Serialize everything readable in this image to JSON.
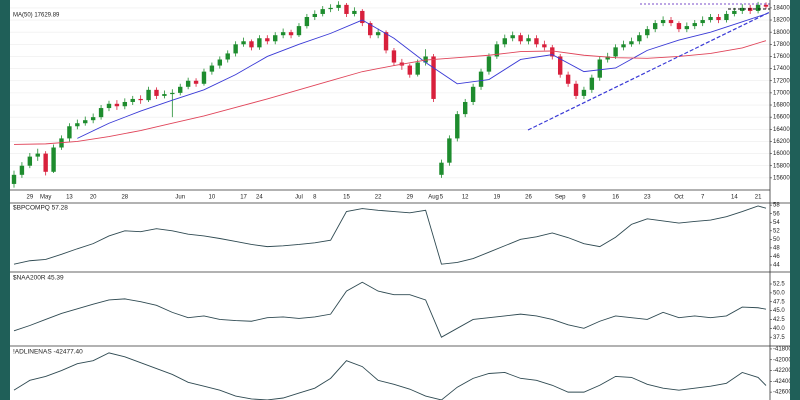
{
  "chart_data": [
    {
      "type": "candlestick",
      "categories": [
        null,
        null,
        "29",
        null,
        "May",
        null,
        null,
        "13",
        null,
        null,
        "20",
        null,
        null,
        null,
        "28",
        null,
        null,
        null,
        null,
        null,
        null,
        "Jun",
        null,
        null,
        null,
        "10",
        null,
        null,
        null,
        "17",
        null,
        "24",
        null,
        null,
        null,
        null,
        "Jul",
        null,
        "8",
        null,
        null,
        null,
        "15",
        null,
        null,
        null,
        "22",
        null,
        null,
        null,
        "29",
        null,
        null,
        "Aug",
        "5",
        null,
        null,
        "12",
        null,
        null,
        null,
        "19",
        null,
        null,
        null,
        "26",
        null,
        null,
        null,
        "Sep",
        null,
        null,
        "9",
        null,
        null,
        null,
        "16",
        null,
        null,
        null,
        "23",
        null,
        null,
        null,
        "Oct",
        null,
        null,
        "7",
        null,
        null,
        null,
        "14",
        null,
        null,
        "21",
        null
      ],
      "open": [
        15500,
        15650,
        15800,
        15950,
        16000,
        15700,
        16100,
        16250,
        16450,
        16500,
        16550,
        16600,
        16750,
        16820,
        16780,
        16850,
        16900,
        16880,
        17050,
        16950,
        16980,
        17000,
        17100,
        17200,
        17150,
        17350,
        17450,
        17550,
        17650,
        17800,
        17850,
        17750,
        17900,
        17850,
        17950,
        18000,
        17950,
        18100,
        18250,
        18300,
        18380,
        18400,
        18450,
        18300,
        18350,
        18150,
        17950,
        18000,
        17700,
        17500,
        17450,
        17300,
        17500,
        17600,
        15650,
        15850,
        16250,
        16650,
        16850,
        17100,
        17350,
        17600,
        17800,
        17900,
        17950,
        17850,
        17900,
        17800,
        17750,
        17600,
        17300,
        17150,
        16950,
        17050,
        17250,
        17550,
        17600,
        17750,
        17800,
        17850,
        17950,
        18050,
        18150,
        18200,
        18150,
        18050,
        18100,
        18150,
        18200,
        18250,
        18200,
        18300,
        18350,
        18400,
        18350,
        18450
      ],
      "high": [
        15720,
        15860,
        16010,
        16080,
        16040,
        16150,
        16300,
        16500,
        16560,
        16610,
        16660,
        16800,
        16870,
        16880,
        16910,
        16950,
        16960,
        17100,
        17090,
        17040,
        17060,
        17150,
        17250,
        17240,
        17400,
        17500,
        17600,
        17700,
        17850,
        17910,
        17880,
        17950,
        17950,
        18000,
        18060,
        18040,
        18150,
        18300,
        18360,
        18430,
        18460,
        18510,
        18480,
        18410,
        18380,
        18180,
        18060,
        18030,
        17740,
        17560,
        17480,
        17550,
        17720,
        17640,
        15900,
        16300,
        16700,
        16900,
        17150,
        17400,
        17650,
        17850,
        17960,
        18010,
        17990,
        17960,
        17950,
        17860,
        17790,
        17640,
        17350,
        17200,
        17100,
        17300,
        17600,
        17660,
        17800,
        17860,
        17910,
        18000,
        18100,
        18200,
        18260,
        18250,
        18180,
        18160,
        18200,
        18260,
        18300,
        18300,
        18350,
        18400,
        18460,
        18450,
        18500,
        18490
      ],
      "low": [
        15440,
        15600,
        15760,
        15880,
        15640,
        15680,
        16060,
        16200,
        16400,
        16460,
        16500,
        16560,
        16700,
        16720,
        16730,
        16800,
        16820,
        16850,
        16900,
        16910,
        16600,
        16960,
        17060,
        17100,
        17120,
        17300,
        17400,
        17500,
        17600,
        17760,
        17700,
        17710,
        17800,
        17800,
        17900,
        17900,
        17920,
        18060,
        18200,
        18260,
        18330,
        18350,
        18250,
        18260,
        18100,
        17900,
        17900,
        17650,
        17450,
        17380,
        17250,
        17270,
        17450,
        16850,
        15600,
        15800,
        16200,
        16600,
        16800,
        17050,
        17300,
        17560,
        17750,
        17850,
        17800,
        17800,
        17750,
        17700,
        17550,
        17250,
        17100,
        16900,
        16900,
        17000,
        17200,
        17500,
        17560,
        17700,
        17760,
        17800,
        17900,
        18000,
        18100,
        18100,
        18000,
        18000,
        18050,
        18100,
        18160,
        18150,
        18160,
        18260,
        18300,
        18300,
        18310,
        18380
      ],
      "close": [
        15650,
        15800,
        15950,
        16000,
        15700,
        16100,
        16250,
        16450,
        16500,
        16550,
        16600,
        16750,
        16820,
        16780,
        16850,
        16900,
        16880,
        17050,
        16950,
        16980,
        17000,
        17100,
        17200,
        17150,
        17350,
        17450,
        17550,
        17650,
        17800,
        17850,
        17750,
        17900,
        17850,
        17950,
        18000,
        17950,
        18100,
        18250,
        18300,
        18380,
        18400,
        18450,
        18300,
        18350,
        18150,
        17950,
        18000,
        17700,
        17500,
        17450,
        17300,
        17500,
        17600,
        16900,
        15850,
        16250,
        16650,
        16850,
        17100,
        17350,
        17600,
        17800,
        17900,
        17950,
        17850,
        17900,
        17800,
        17750,
        17600,
        17300,
        17150,
        16950,
        17050,
        17250,
        17550,
        17600,
        17750,
        17800,
        17850,
        17950,
        18050,
        18150,
        18200,
        18150,
        18050,
        18100,
        18150,
        18200,
        18250,
        18200,
        18300,
        18350,
        18400,
        18350,
        18450,
        18420
      ],
      "up_color": "#1e8c2e",
      "down_color": "#d8203c",
      "series": [
        {
          "color": "#3a3ad6",
          "x": [
            0,
            4,
            8,
            12,
            16,
            20,
            24,
            28,
            32,
            36,
            40,
            44,
            48,
            52,
            56,
            60,
            64,
            68,
            72,
            76,
            80,
            84,
            88,
            92,
            95
          ],
          "values": [
            null,
            null,
            16250,
            16500,
            16700,
            16880,
            17050,
            17300,
            17600,
            17800,
            17980,
            18200,
            17900,
            17500,
            17150,
            17220,
            17550,
            17630,
            17350,
            17410,
            17700,
            17870,
            18000,
            18170,
            18300
          ]
        },
        {
          "name": "MA(50) 17629.89",
          "color": "#e0455a",
          "x": [
            0,
            4,
            8,
            12,
            16,
            20,
            24,
            28,
            32,
            36,
            40,
            44,
            48,
            52,
            56,
            60,
            64,
            68,
            72,
            76,
            80,
            84,
            88,
            92,
            95
          ],
          "values": [
            16150,
            16160,
            16200,
            16280,
            16380,
            16500,
            16620,
            16760,
            16900,
            17050,
            17200,
            17350,
            17450,
            17540,
            17580,
            17620,
            17680,
            17690,
            17620,
            17580,
            17570,
            17600,
            17650,
            17740,
            17860
          ]
        }
      ],
      "ylim": [
        15400,
        18530
      ],
      "yticks": [
        15600,
        15800,
        16000,
        16200,
        16400,
        16600,
        16800,
        17000,
        17200,
        17400,
        17600,
        17800,
        18000,
        18200,
        18400
      ],
      "grid": true
    },
    {
      "type": "line",
      "title": "$BPCOMPQ 57.28",
      "color": "#2f4a52",
      "x": [
        0,
        2,
        4,
        6,
        8,
        10,
        12,
        14,
        16,
        18,
        20,
        22,
        24,
        26,
        28,
        30,
        32,
        34,
        36,
        38,
        40,
        42,
        44,
        46,
        48,
        50,
        52,
        54,
        56,
        58,
        60,
        62,
        64,
        66,
        68,
        70,
        72,
        74,
        76,
        78,
        80,
        82,
        84,
        86,
        88,
        90,
        92,
        94,
        95
      ],
      "values": [
        44.2,
        45,
        45.3,
        46.5,
        47.8,
        49,
        50.8,
        52,
        51.8,
        52.5,
        52,
        51.2,
        50.8,
        50.2,
        49.5,
        48.8,
        48.3,
        48.5,
        48.8,
        49.2,
        49.8,
        56.5,
        57.2,
        56.8,
        56.5,
        56.2,
        56.8,
        44.2,
        44.6,
        45.5,
        47,
        48.5,
        50,
        50.6,
        51.5,
        50.4,
        49,
        48.3,
        50.5,
        53.5,
        54.8,
        54.3,
        53.8,
        54.2,
        54.5,
        55.3,
        56.5,
        57.8,
        57.28
      ],
      "ylim": [
        42.6,
        58.5
      ],
      "yticks": [
        44,
        46,
        48,
        50,
        52,
        54,
        56,
        58
      ]
    },
    {
      "type": "line",
      "title": "$NAA200R 45.39",
      "color": "#2f4a52",
      "x": [
        0,
        2,
        4,
        6,
        8,
        10,
        12,
        14,
        16,
        18,
        20,
        22,
        24,
        26,
        28,
        30,
        32,
        34,
        36,
        38,
        40,
        42,
        44,
        46,
        48,
        50,
        52,
        54,
        56,
        58,
        60,
        62,
        64,
        66,
        68,
        70,
        72,
        74,
        76,
        78,
        80,
        82,
        84,
        86,
        88,
        90,
        92,
        94,
        95
      ],
      "values": [
        39.3,
        40.8,
        42.5,
        44.2,
        45.5,
        46.8,
        48,
        48.3,
        47.5,
        46.5,
        44.5,
        43,
        43.5,
        42.5,
        42.2,
        42,
        43,
        43.2,
        42.8,
        43.2,
        44,
        50.5,
        53,
        50.5,
        49.5,
        49.5,
        48,
        37.5,
        40,
        42.5,
        43,
        43.5,
        44,
        43.5,
        42.5,
        41,
        40,
        42,
        43.5,
        43,
        42.5,
        44.5,
        43,
        43.5,
        43,
        43.5,
        46,
        45.8,
        45.39
      ],
      "ylim": [
        35.3,
        55.6
      ],
      "yticks": [
        37.5,
        {
          "value": 40,
          "label": "40.0"
        },
        42.5,
        {
          "value": 45,
          "label": "45.0"
        },
        47.5,
        {
          "value": 50,
          "label": "50.0"
        },
        52.5
      ]
    },
    {
      "type": "line",
      "title": "!ADLINENAS -42477.40",
      "color": "#2f4a52",
      "x": [
        0,
        2,
        4,
        6,
        8,
        10,
        12,
        14,
        16,
        18,
        20,
        22,
        24,
        26,
        28,
        30,
        32,
        34,
        36,
        38,
        40,
        42,
        44,
        46,
        48,
        50,
        52,
        54,
        56,
        58,
        60,
        62,
        64,
        66,
        68,
        70,
        72,
        74,
        76,
        78,
        80,
        82,
        84,
        86,
        88,
        90,
        92,
        94,
        95
      ],
      "values": [
        -42564,
        -42382,
        -42309,
        -42200,
        -42073,
        -42018,
        -41873,
        -41945,
        -42055,
        -42164,
        -42273,
        -42418,
        -42491,
        -42564,
        -42673,
        -42727,
        -42745,
        -42709,
        -42618,
        -42527,
        -42345,
        -42018,
        -42127,
        -42382,
        -42455,
        -42545,
        -42673,
        -42745,
        -42509,
        -42345,
        -42255,
        -42236,
        -42345,
        -42382,
        -42473,
        -42600,
        -42600,
        -42473,
        -42309,
        -42327,
        -42455,
        -42527,
        -42564,
        -42527,
        -42491,
        -42436,
        -42236,
        -42327,
        -42477.4
      ],
      "ylim": [
        -42746,
        -41764
      ],
      "yticks": [
        -42600,
        -42400,
        -42200,
        -42000,
        -41800
      ]
    }
  ]
}
